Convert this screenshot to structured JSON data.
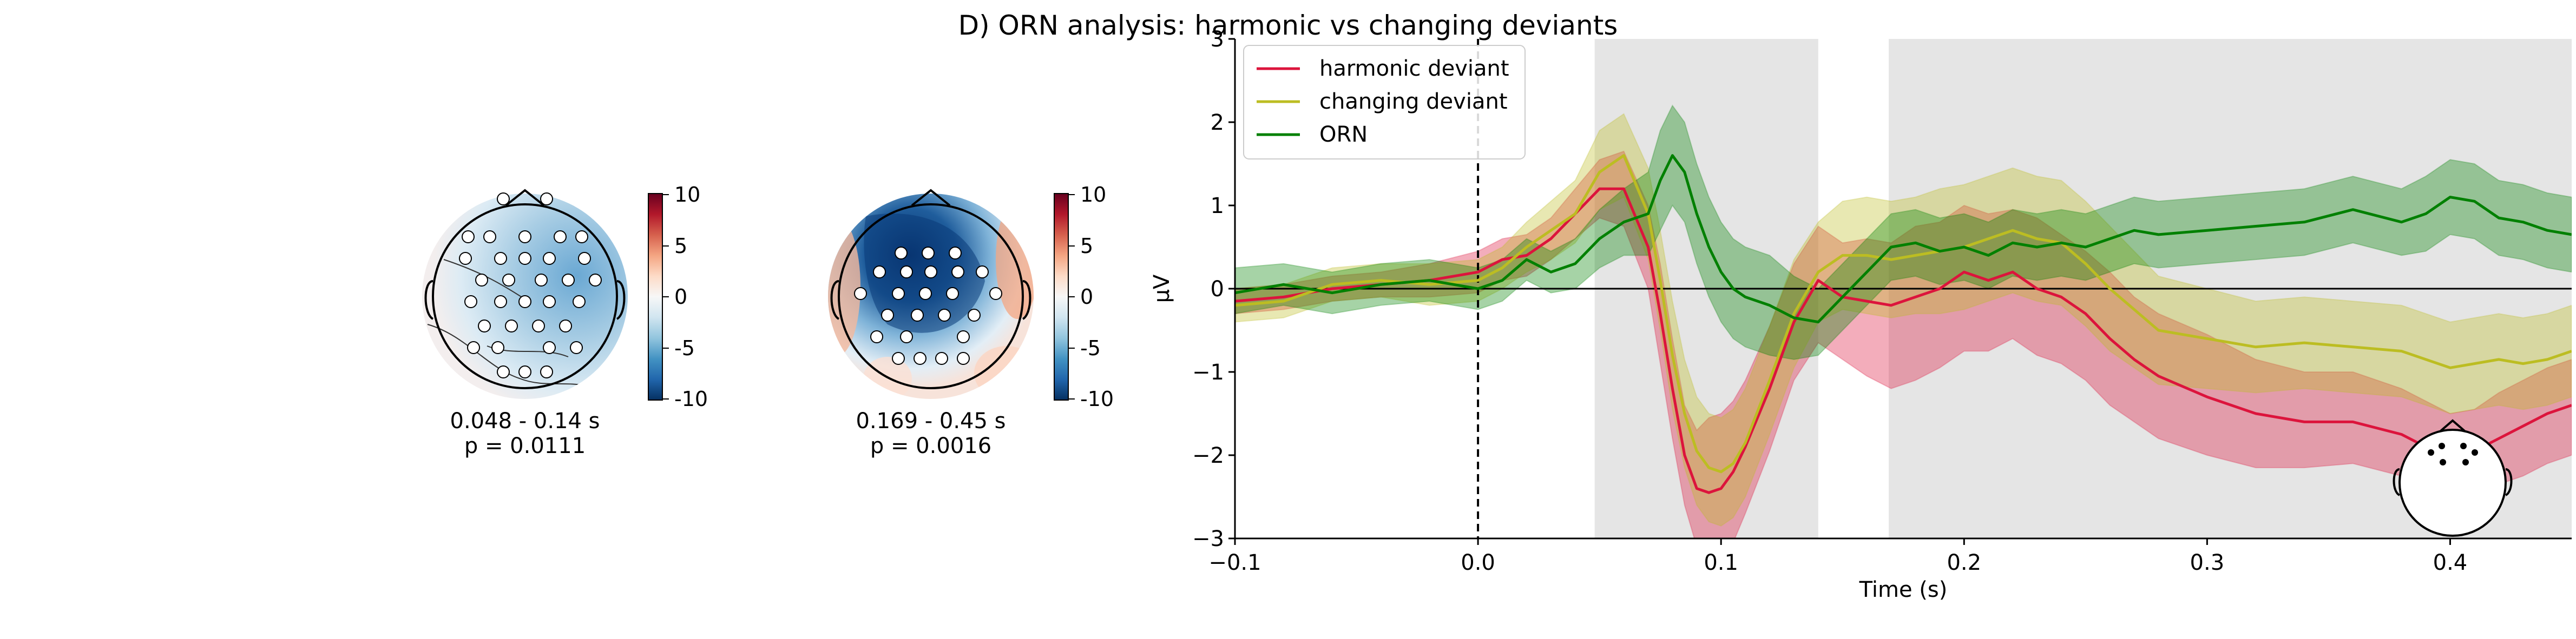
{
  "title": "D) ORN analysis: harmonic vs changing deviants",
  "topomaps": [
    {
      "time_label": "0.048 - 0.14 s",
      "p_label": "p = 0.0111",
      "colorbar_ticks": [
        "10",
        "5",
        "0",
        "-5",
        "-10"
      ]
    },
    {
      "time_label": "0.169 - 0.45 s",
      "p_label": "p = 0.0016",
      "colorbar_ticks": [
        "10",
        "5",
        "0",
        "-5",
        "-10"
      ]
    }
  ],
  "colors": {
    "harmonic": "#dc143c",
    "changing": "#bcbd22",
    "orn": "#008000",
    "cluster_shade": "#e5e5e5",
    "colormap": [
      "#053061",
      "#2166ac",
      "#4393c3",
      "#92c5de",
      "#d1e5f0",
      "#f7f7f7",
      "#fddbc7",
      "#f4a582",
      "#d6604d",
      "#b2182b",
      "#67001f"
    ]
  },
  "chart_data": {
    "type": "line",
    "xlabel": "Time (s)",
    "ylabel": "μV",
    "xlim": [
      -0.1,
      0.45
    ],
    "ylim": [
      -3,
      3
    ],
    "xticks": [
      -0.1,
      0.0,
      0.1,
      0.2,
      0.3,
      0.4
    ],
    "xtick_labels": [
      "−0.1",
      "0.0",
      "0.1",
      "0.2",
      "0.3",
      "0.4"
    ],
    "yticks": [
      -3,
      -2,
      -1,
      0,
      1,
      2,
      3
    ],
    "ytick_labels": [
      "−3",
      "−2",
      "−1",
      "0",
      "1",
      "2",
      "3"
    ],
    "legend_position": "top-left",
    "shaded_intervals": [
      [
        0.048,
        0.14
      ],
      [
        0.169,
        0.45
      ]
    ],
    "x": [
      -0.1,
      -0.08,
      -0.06,
      -0.04,
      -0.02,
      0.0,
      0.01,
      0.02,
      0.03,
      0.04,
      0.05,
      0.06,
      0.07,
      0.075,
      0.08,
      0.085,
      0.09,
      0.095,
      0.1,
      0.105,
      0.11,
      0.12,
      0.13,
      0.14,
      0.15,
      0.16,
      0.17,
      0.18,
      0.19,
      0.2,
      0.21,
      0.22,
      0.23,
      0.24,
      0.25,
      0.26,
      0.27,
      0.28,
      0.3,
      0.32,
      0.34,
      0.36,
      0.38,
      0.39,
      0.4,
      0.41,
      0.42,
      0.43,
      0.44,
      0.45
    ],
    "series": [
      {
        "name": "harmonic deviant",
        "color": "#dc143c",
        "values": [
          -0.15,
          -0.1,
          0.0,
          0.05,
          0.1,
          0.2,
          0.35,
          0.4,
          0.6,
          0.9,
          1.2,
          1.2,
          0.5,
          -0.3,
          -1.2,
          -2.0,
          -2.4,
          -2.45,
          -2.4,
          -2.2,
          -1.9,
          -1.2,
          -0.4,
          0.1,
          -0.1,
          -0.15,
          -0.2,
          -0.1,
          0.0,
          0.2,
          0.1,
          0.2,
          0.0,
          -0.1,
          -0.3,
          -0.6,
          -0.85,
          -1.05,
          -1.3,
          -1.5,
          -1.6,
          -1.6,
          -1.75,
          -1.9,
          -2.0,
          -1.95,
          -1.8,
          -1.65,
          -1.5,
          -1.4
        ],
        "lower": [
          -0.3,
          -0.25,
          -0.15,
          -0.1,
          -0.1,
          -0.05,
          0.1,
          0.15,
          0.35,
          0.6,
          0.85,
          0.75,
          0.0,
          -0.9,
          -1.8,
          -2.6,
          -3.1,
          -3.35,
          -3.3,
          -3.05,
          -2.7,
          -1.95,
          -1.1,
          -0.65,
          -0.85,
          -1.05,
          -1.2,
          -1.1,
          -0.95,
          -0.75,
          -0.75,
          -0.6,
          -0.8,
          -0.9,
          -1.1,
          -1.4,
          -1.6,
          -1.8,
          -2.0,
          -2.15,
          -2.15,
          -2.1,
          -2.25,
          -2.4,
          -2.5,
          -2.5,
          -2.35,
          -2.25,
          -2.1,
          -2.0
        ],
        "upper": [
          0.0,
          0.05,
          0.15,
          0.2,
          0.3,
          0.45,
          0.6,
          0.65,
          0.85,
          1.2,
          1.55,
          1.65,
          1.0,
          0.3,
          -0.6,
          -1.4,
          -1.7,
          -1.55,
          -1.5,
          -1.35,
          -1.1,
          -0.45,
          0.3,
          0.75,
          0.55,
          0.6,
          0.55,
          0.75,
          0.8,
          1.0,
          0.9,
          0.95,
          0.85,
          0.65,
          0.45,
          0.2,
          -0.1,
          -0.3,
          -0.55,
          -0.85,
          -1.0,
          -1.0,
          -1.2,
          -1.35,
          -1.5,
          -1.45,
          -1.25,
          -1.1,
          -0.95,
          -0.85
        ]
      },
      {
        "name": "changing deviant",
        "color": "#bcbd22",
        "values": [
          -0.2,
          -0.15,
          0.05,
          0.1,
          0.05,
          0.1,
          0.25,
          0.5,
          0.7,
          0.9,
          1.4,
          1.6,
          0.9,
          0.1,
          -0.8,
          -1.5,
          -1.95,
          -2.15,
          -2.2,
          -2.1,
          -1.85,
          -1.1,
          -0.3,
          0.2,
          0.4,
          0.4,
          0.35,
          0.4,
          0.45,
          0.5,
          0.6,
          0.7,
          0.6,
          0.55,
          0.3,
          0.0,
          -0.25,
          -0.5,
          -0.6,
          -0.7,
          -0.65,
          -0.7,
          -0.75,
          -0.85,
          -0.95,
          -0.9,
          -0.85,
          -0.9,
          -0.85,
          -0.75
        ],
        "lower": [
          -0.4,
          -0.35,
          -0.15,
          -0.1,
          -0.2,
          -0.15,
          0.0,
          0.2,
          0.35,
          0.55,
          0.95,
          1.1,
          0.35,
          -0.5,
          -1.45,
          -2.15,
          -2.6,
          -2.8,
          -2.85,
          -2.75,
          -2.5,
          -1.75,
          -0.95,
          -0.4,
          -0.25,
          -0.3,
          -0.35,
          -0.3,
          -0.3,
          -0.25,
          -0.15,
          -0.05,
          -0.15,
          -0.2,
          -0.45,
          -0.75,
          -0.95,
          -1.15,
          -1.2,
          -1.25,
          -1.2,
          -1.25,
          -1.3,
          -1.4,
          -1.5,
          -1.45,
          -1.4,
          -1.45,
          -1.4,
          -1.3
        ],
        "upper": [
          0.0,
          0.05,
          0.25,
          0.3,
          0.3,
          0.35,
          0.5,
          0.8,
          1.05,
          1.3,
          1.9,
          2.1,
          1.45,
          0.7,
          -0.15,
          -0.85,
          -1.3,
          -1.5,
          -1.55,
          -1.45,
          -1.2,
          -0.45,
          0.35,
          0.8,
          1.05,
          1.1,
          1.05,
          1.1,
          1.2,
          1.25,
          1.35,
          1.45,
          1.35,
          1.3,
          1.05,
          0.75,
          0.45,
          0.15,
          0.0,
          -0.15,
          -0.1,
          -0.15,
          -0.2,
          -0.3,
          -0.4,
          -0.35,
          -0.3,
          -0.35,
          -0.3,
          -0.2
        ]
      },
      {
        "name": "ORN",
        "color": "#008000",
        "values": [
          -0.05,
          0.05,
          -0.05,
          0.05,
          0.1,
          0.0,
          0.1,
          0.35,
          0.2,
          0.3,
          0.6,
          0.8,
          0.9,
          1.3,
          1.6,
          1.4,
          0.9,
          0.5,
          0.2,
          0.0,
          -0.1,
          -0.2,
          -0.35,
          -0.4,
          -0.1,
          0.2,
          0.5,
          0.55,
          0.45,
          0.5,
          0.4,
          0.55,
          0.5,
          0.55,
          0.5,
          0.6,
          0.7,
          0.65,
          0.7,
          0.75,
          0.8,
          0.95,
          0.8,
          0.9,
          1.1,
          1.05,
          0.85,
          0.8,
          0.7,
          0.65
        ],
        "lower": [
          -0.3,
          -0.2,
          -0.3,
          -0.2,
          -0.15,
          -0.25,
          -0.15,
          0.1,
          -0.05,
          0.0,
          0.25,
          0.4,
          0.4,
          0.7,
          1.0,
          0.8,
          0.3,
          -0.1,
          -0.4,
          -0.6,
          -0.7,
          -0.8,
          -0.85,
          -0.8,
          -0.5,
          -0.2,
          0.1,
          0.15,
          0.05,
          0.1,
          0.0,
          0.15,
          0.1,
          0.15,
          0.1,
          0.2,
          0.3,
          0.25,
          0.3,
          0.35,
          0.4,
          0.55,
          0.4,
          0.45,
          0.65,
          0.6,
          0.4,
          0.35,
          0.25,
          0.2
        ],
        "upper": [
          0.25,
          0.3,
          0.2,
          0.3,
          0.35,
          0.25,
          0.35,
          0.6,
          0.45,
          0.6,
          0.95,
          1.2,
          1.4,
          1.9,
          2.2,
          2.0,
          1.5,
          1.1,
          0.8,
          0.6,
          0.5,
          0.4,
          0.15,
          0.0,
          0.3,
          0.6,
          0.9,
          0.95,
          0.85,
          0.9,
          0.8,
          0.95,
          0.9,
          0.95,
          0.9,
          1.0,
          1.1,
          1.05,
          1.1,
          1.15,
          1.2,
          1.35,
          1.2,
          1.35,
          1.55,
          1.5,
          1.3,
          1.25,
          1.15,
          1.1
        ]
      }
    ]
  }
}
